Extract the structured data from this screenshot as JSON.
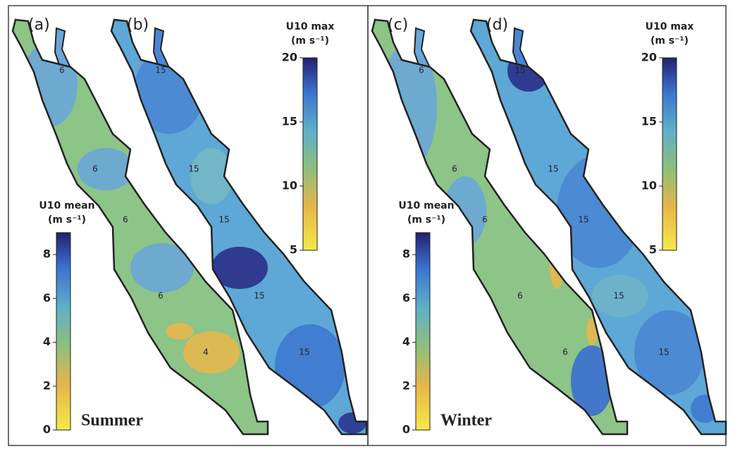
{
  "halves": [
    {
      "season": "Summer",
      "maps": [
        {
          "label": "(a)",
          "contours": [
            6,
            6,
            6,
            6,
            4
          ]
        },
        {
          "label": "(b)",
          "contours": [
            15,
            15,
            15,
            15,
            15
          ]
        }
      ],
      "mean_bar": {
        "title": "U10 mean",
        "unit": "(m s⁻¹)",
        "lim": [
          0,
          9
        ],
        "ticks": [
          0,
          2,
          4,
          6,
          8
        ]
      },
      "max_bar": {
        "title": "U10 max",
        "unit": "(m s⁻¹)",
        "lim": [
          5,
          20
        ],
        "ticks": [
          5,
          10,
          15,
          20
        ]
      }
    },
    {
      "season": "Winter",
      "maps": [
        {
          "label": "(c)",
          "contours": [
            6,
            6,
            6,
            6,
            6
          ]
        },
        {
          "label": "(d)",
          "contours": [
            15,
            15,
            15,
            15,
            15
          ]
        }
      ],
      "mean_bar": {
        "title": "U10 mean",
        "unit": "(m s⁻¹)",
        "lim": [
          0,
          9
        ],
        "ticks": [
          0,
          2,
          4,
          6,
          8
        ]
      },
      "max_bar": {
        "title": "U10 max",
        "unit": "(m s⁻¹)",
        "lim": [
          5,
          20
        ],
        "ticks": [
          5,
          10,
          15,
          20
        ]
      }
    }
  ]
}
